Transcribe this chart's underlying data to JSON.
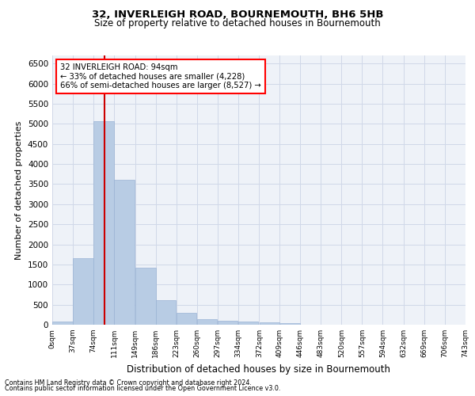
{
  "title1": "32, INVERLEIGH ROAD, BOURNEMOUTH, BH6 5HB",
  "title2": "Size of property relative to detached houses in Bournemouth",
  "xlabel": "Distribution of detached houses by size in Bournemouth",
  "ylabel": "Number of detached properties",
  "footer1": "Contains HM Land Registry data © Crown copyright and database right 2024.",
  "footer2": "Contains public sector information licensed under the Open Government Licence v3.0.",
  "annotation_line1": "32 INVERLEIGH ROAD: 94sqm",
  "annotation_line2": "← 33% of detached houses are smaller (4,228)",
  "annotation_line3": "66% of semi-detached houses are larger (8,527) →",
  "property_size": 94,
  "bar_color": "#b8cce4",
  "bar_edge_color": "#9ab3d5",
  "vline_color": "#cc0000",
  "grid_color": "#d0d8e8",
  "bg_color": "#eef2f8",
  "bin_edges": [
    0,
    37,
    74,
    111,
    149,
    186,
    223,
    260,
    297,
    334,
    372,
    409,
    446,
    483,
    520,
    557,
    594,
    632,
    669,
    706,
    743
  ],
  "bin_labels": [
    "0sqm",
    "37sqm",
    "74sqm",
    "111sqm",
    "149sqm",
    "186sqm",
    "223sqm",
    "260sqm",
    "297sqm",
    "334sqm",
    "372sqm",
    "409sqm",
    "446sqm",
    "483sqm",
    "520sqm",
    "557sqm",
    "594sqm",
    "632sqm",
    "669sqm",
    "706sqm",
    "743sqm"
  ],
  "bar_heights": [
    75,
    1650,
    5070,
    3600,
    1420,
    620,
    295,
    140,
    100,
    75,
    55,
    45,
    0,
    0,
    0,
    0,
    0,
    0,
    0,
    0
  ],
  "ylim": [
    0,
    6700
  ],
  "yticks": [
    0,
    500,
    1000,
    1500,
    2000,
    2500,
    3000,
    3500,
    4000,
    4500,
    5000,
    5500,
    6000,
    6500
  ]
}
